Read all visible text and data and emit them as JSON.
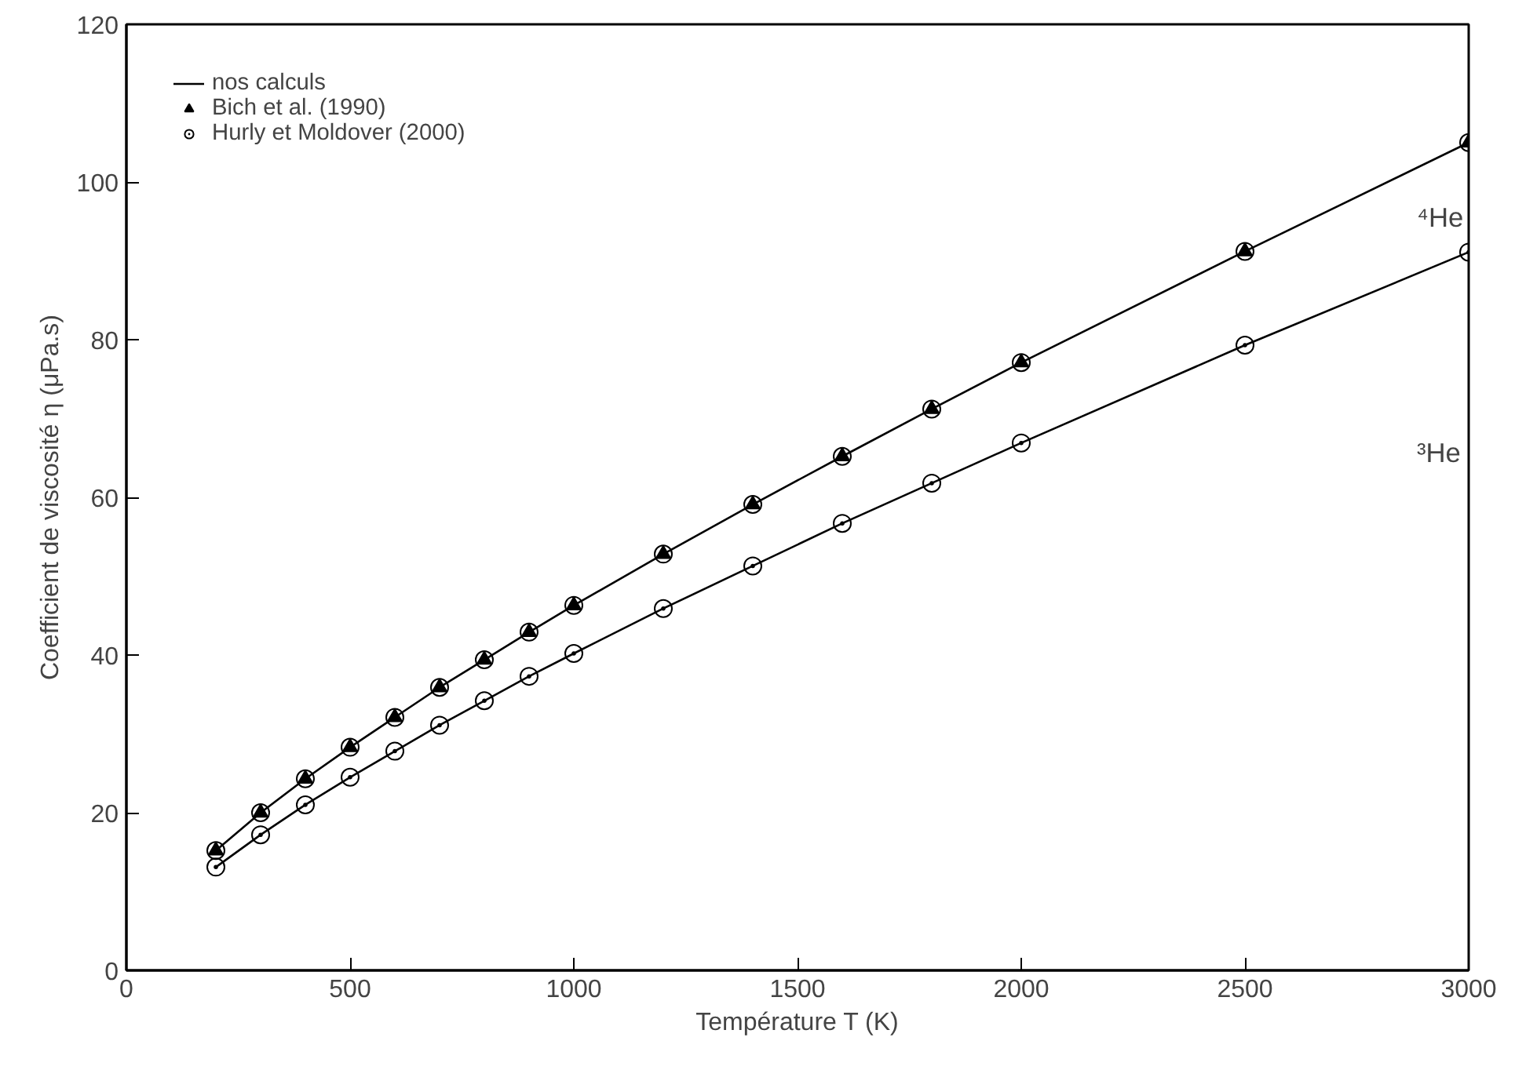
{
  "chart_data": {
    "type": "line",
    "xlabel": "Température T (K)",
    "ylabel": "Coefficient de viscosité η (μPa.s)",
    "x": [
      200,
      300,
      400,
      500,
      600,
      700,
      800,
      900,
      1000,
      1200,
      1400,
      1600,
      1800,
      2000,
      2500,
      3000
    ],
    "series": [
      {
        "name": "nos calculs",
        "color": "#000000",
        "marker": "none",
        "values": [
          15.2,
          20.0,
          24.3,
          28.3,
          32.1,
          35.9,
          39.4,
          42.9,
          46.3,
          52.8,
          59.1,
          65.2,
          71.2,
          77.1,
          91.2,
          105.0
        ]
      },
      {
        "color": "#000000",
        "marker": "none",
        "values": [
          13.1,
          17.2,
          21.0,
          24.5,
          27.8,
          31.1,
          34.2,
          37.3,
          40.2,
          45.9,
          51.3,
          56.7,
          61.8,
          66.9,
          79.3,
          91.1
        ]
      },
      {
        "name": "Bich et al. (1990)",
        "type": "scatter",
        "color": "#000000",
        "marker": "triangle",
        "values": [
          15.2,
          20.0,
          24.3,
          28.3,
          32.1,
          35.9,
          39.4,
          42.9,
          46.3,
          52.8,
          59.1,
          65.2,
          71.2,
          77.1,
          91.2,
          105.0
        ]
      },
      {
        "name": "Hurly et Moldover (2000)",
        "type": "scatter",
        "color": "#000000",
        "marker": "circle",
        "values": [
          15.2,
          20.0,
          24.3,
          28.3,
          32.1,
          35.9,
          39.4,
          42.9,
          46.3,
          52.8,
          59.1,
          65.2,
          71.2,
          77.1,
          91.2,
          105.0
        ]
      },
      {
        "type": "scatter",
        "color": "#000000",
        "marker": "circle",
        "values": [
          13.1,
          17.2,
          21.0,
          24.5,
          27.8,
          31.1,
          34.2,
          37.3,
          40.2,
          45.9,
          51.3,
          56.7,
          61.8,
          66.9,
          79.3,
          91.1
        ]
      }
    ],
    "annotations": [
      "⁴He",
      "³He"
    ],
    "xlim": [
      0,
      3000
    ],
    "ylim": [
      0,
      120
    ],
    "xticks": [
      0,
      500,
      1000,
      1500,
      2000,
      2500,
      3000
    ],
    "yticks": [
      0,
      20,
      40,
      60,
      80,
      100,
      120
    ],
    "grid": false,
    "legend": "top left"
  }
}
